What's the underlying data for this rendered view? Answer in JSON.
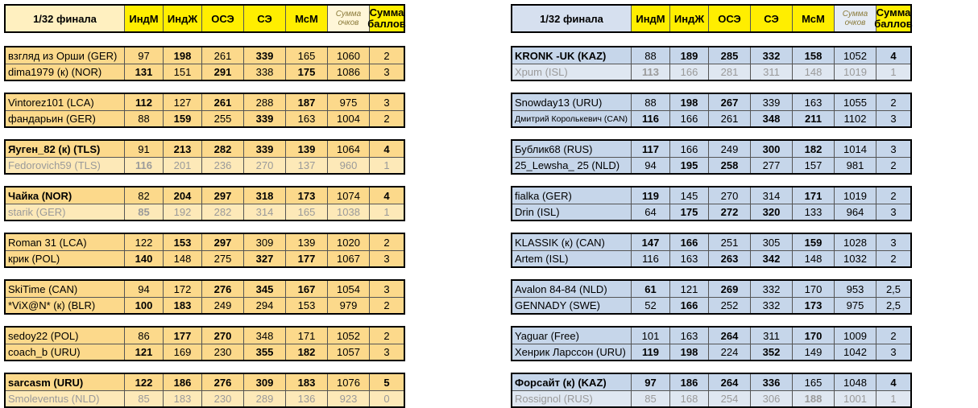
{
  "headers": {
    "round": "1/32 финала",
    "indm": "ИндМ",
    "indzh": "ИндЖ",
    "ose": "ОСЭ",
    "se": "СЭ",
    "msm": "МсМ",
    "sum_points_1": "Сумма",
    "sum_points_2": "очков",
    "sum_score_1": "Сумма",
    "sum_score_2": "баллов"
  },
  "colors": {
    "left_row": "#fcd98b",
    "right_row": "#c6d6ea",
    "header_yellow": "#ffee00",
    "lost_text": "#9a9a9a"
  },
  "left": [
    [
      {
        "name": "взгляд из Орши (GER)",
        "v": [
          "97",
          "198",
          "261",
          "339",
          "165",
          "1060",
          "2"
        ],
        "b": [
          0,
          1,
          0,
          1,
          0,
          0,
          0
        ],
        "nb": 0,
        "lost": 0
      },
      {
        "name": "dima1979 (к) (NOR)",
        "v": [
          "131",
          "151",
          "291",
          "338",
          "175",
          "1086",
          "3"
        ],
        "b": [
          1,
          0,
          1,
          0,
          1,
          0,
          0
        ],
        "nb": 0,
        "lost": 0
      }
    ],
    [
      {
        "name": "Vintorez101 (LCA)",
        "v": [
          "112",
          "127",
          "261",
          "288",
          "187",
          "975",
          "3"
        ],
        "b": [
          1,
          0,
          1,
          0,
          1,
          0,
          0
        ],
        "nb": 0,
        "lost": 0
      },
      {
        "name": "фандарьин (GER)",
        "v": [
          "88",
          "159",
          "255",
          "339",
          "163",
          "1004",
          "2"
        ],
        "b": [
          0,
          1,
          0,
          1,
          0,
          0,
          0
        ],
        "nb": 0,
        "lost": 0
      }
    ],
    [
      {
        "name": "Яуген_82 (к) (TLS)",
        "v": [
          "91",
          "213",
          "282",
          "339",
          "139",
          "1064",
          "4"
        ],
        "b": [
          0,
          1,
          1,
          1,
          1,
          0,
          1
        ],
        "nb": 1,
        "lost": 0
      },
      {
        "name": "Fedorovich59 (TLS)",
        "v": [
          "116",
          "201",
          "236",
          "270",
          "137",
          "960",
          "1"
        ],
        "b": [
          1,
          0,
          0,
          0,
          0,
          0,
          0
        ],
        "nb": 0,
        "lost": 1
      }
    ],
    [
      {
        "name": "Чайка (NOR)",
        "v": [
          "82",
          "204",
          "297",
          "318",
          "173",
          "1074",
          "4"
        ],
        "b": [
          0,
          1,
          1,
          1,
          1,
          0,
          1
        ],
        "nb": 1,
        "lost": 0
      },
      {
        "name": "starik (GER)",
        "v": [
          "85",
          "192",
          "282",
          "314",
          "165",
          "1038",
          "1"
        ],
        "b": [
          1,
          0,
          0,
          0,
          0,
          0,
          0
        ],
        "nb": 0,
        "lost": 1
      }
    ],
    [
      {
        "name": "Roman 31 (LCA)",
        "v": [
          "122",
          "153",
          "297",
          "309",
          "139",
          "1020",
          "2"
        ],
        "b": [
          0,
          1,
          1,
          0,
          0,
          0,
          0
        ],
        "nb": 0,
        "lost": 0
      },
      {
        "name": "крик (POL)",
        "v": [
          "140",
          "148",
          "275",
          "327",
          "177",
          "1067",
          "3"
        ],
        "b": [
          1,
          0,
          0,
          1,
          1,
          0,
          0
        ],
        "nb": 0,
        "lost": 0
      }
    ],
    [
      {
        "name": "SkiTime (CAN)",
        "v": [
          "94",
          "172",
          "276",
          "345",
          "167",
          "1054",
          "3"
        ],
        "b": [
          0,
          0,
          1,
          1,
          1,
          0,
          0
        ],
        "nb": 0,
        "lost": 0
      },
      {
        "name": "*ViX@N* (к) (BLR)",
        "v": [
          "100",
          "183",
          "249",
          "294",
          "153",
          "979",
          "2"
        ],
        "b": [
          1,
          1,
          0,
          0,
          0,
          0,
          0
        ],
        "nb": 0,
        "lost": 0
      }
    ],
    [
      {
        "name": "sedoy22 (POL)",
        "v": [
          "86",
          "177",
          "270",
          "348",
          "171",
          "1052",
          "2"
        ],
        "b": [
          0,
          1,
          1,
          0,
          0,
          0,
          0
        ],
        "nb": 0,
        "lost": 0
      },
      {
        "name": "coach_b (URU)",
        "v": [
          "121",
          "169",
          "230",
          "355",
          "182",
          "1057",
          "3"
        ],
        "b": [
          1,
          0,
          0,
          1,
          1,
          0,
          0
        ],
        "nb": 0,
        "lost": 0
      }
    ],
    [
      {
        "name": "sarcasm (URU)",
        "v": [
          "122",
          "186",
          "276",
          "309",
          "183",
          "1076",
          "5"
        ],
        "b": [
          1,
          1,
          1,
          1,
          1,
          0,
          1
        ],
        "nb": 1,
        "lost": 0
      },
      {
        "name": "Smoleventus (NLD)",
        "v": [
          "85",
          "183",
          "230",
          "289",
          "136",
          "923",
          "0"
        ],
        "b": [
          0,
          0,
          0,
          0,
          0,
          0,
          0
        ],
        "nb": 0,
        "lost": 1
      }
    ]
  ],
  "right": [
    [
      {
        "name": "KRONK -UK (KAZ)",
        "v": [
          "88",
          "189",
          "285",
          "332",
          "158",
          "1052",
          "4"
        ],
        "b": [
          0,
          1,
          1,
          1,
          1,
          0,
          1
        ],
        "nb": 1,
        "lost": 0
      },
      {
        "name": "Xpum (ISL)",
        "v": [
          "113",
          "166",
          "281",
          "311",
          "148",
          "1019",
          "1"
        ],
        "b": [
          1,
          0,
          0,
          0,
          0,
          0,
          0
        ],
        "nb": 0,
        "lost": 1
      }
    ],
    [
      {
        "name": "Snowday13 (URU)",
        "v": [
          "88",
          "198",
          "267",
          "339",
          "163",
          "1055",
          "2"
        ],
        "b": [
          0,
          1,
          1,
          0,
          0,
          0,
          0
        ],
        "nb": 0,
        "lost": 0
      },
      {
        "name": "Дмитрий Королькевич (CAN)",
        "v": [
          "116",
          "166",
          "261",
          "348",
          "211",
          "1102",
          "3"
        ],
        "b": [
          1,
          0,
          0,
          1,
          1,
          0,
          0
        ],
        "nb": 0,
        "lost": 0,
        "small": 1
      }
    ],
    [
      {
        "name": "Бублик68 (RUS)",
        "v": [
          "117",
          "166",
          "249",
          "300",
          "182",
          "1014",
          "3"
        ],
        "b": [
          1,
          0,
          0,
          1,
          1,
          0,
          0
        ],
        "nb": 0,
        "lost": 0
      },
      {
        "name": "25_Lewsha_ 25 (NLD)",
        "v": [
          "94",
          "195",
          "258",
          "277",
          "157",
          "981",
          "2"
        ],
        "b": [
          0,
          1,
          1,
          0,
          0,
          0,
          0
        ],
        "nb": 0,
        "lost": 0
      }
    ],
    [
      {
        "name": "fialka (GER)",
        "v": [
          "119",
          "145",
          "270",
          "314",
          "171",
          "1019",
          "2"
        ],
        "b": [
          1,
          0,
          0,
          0,
          1,
          0,
          0
        ],
        "nb": 0,
        "lost": 0
      },
      {
        "name": "Drin (ISL)",
        "v": [
          "64",
          "175",
          "272",
          "320",
          "133",
          "964",
          "3"
        ],
        "b": [
          0,
          1,
          1,
          1,
          0,
          0,
          0
        ],
        "nb": 0,
        "lost": 0
      }
    ],
    [
      {
        "name": "KLASSIK (к) (CAN)",
        "v": [
          "147",
          "166",
          "251",
          "305",
          "159",
          "1028",
          "3"
        ],
        "b": [
          1,
          1,
          0,
          0,
          1,
          0,
          0
        ],
        "nb": 0,
        "lost": 0
      },
      {
        "name": "Artem (ISL)",
        "v": [
          "116",
          "163",
          "263",
          "342",
          "148",
          "1032",
          "2"
        ],
        "b": [
          0,
          0,
          1,
          1,
          0,
          0,
          0
        ],
        "nb": 0,
        "lost": 0
      }
    ],
    [
      {
        "name": "Avalon 84-84 (NLD)",
        "v": [
          "61",
          "121",
          "269",
          "332",
          "170",
          "953",
          "2,5"
        ],
        "b": [
          1,
          0,
          1,
          0,
          0,
          0,
          0
        ],
        "nb": 0,
        "lost": 0
      },
      {
        "name": "GENNADY (SWE)",
        "v": [
          "52",
          "166",
          "252",
          "332",
          "173",
          "975",
          "2,5"
        ],
        "b": [
          0,
          1,
          0,
          0,
          1,
          0,
          0
        ],
        "nb": 0,
        "lost": 0
      }
    ],
    [
      {
        "name": "Yaguar (Free)",
        "v": [
          "101",
          "163",
          "264",
          "311",
          "170",
          "1009",
          "2"
        ],
        "b": [
          0,
          0,
          1,
          0,
          1,
          0,
          0
        ],
        "nb": 0,
        "lost": 0
      },
      {
        "name": "Хенрик Ларссон (URU)",
        "v": [
          "119",
          "198",
          "224",
          "352",
          "149",
          "1042",
          "3"
        ],
        "b": [
          1,
          1,
          0,
          1,
          0,
          0,
          0
        ],
        "nb": 0,
        "lost": 0
      }
    ],
    [
      {
        "name": "Форсайт (к) (KAZ)",
        "v": [
          "97",
          "186",
          "264",
          "336",
          "165",
          "1048",
          "4"
        ],
        "b": [
          1,
          1,
          1,
          1,
          0,
          0,
          1
        ],
        "nb": 1,
        "lost": 0
      },
      {
        "name": "Rossignol (RUS)",
        "v": [
          "85",
          "168",
          "254",
          "306",
          "188",
          "1001",
          "1"
        ],
        "b": [
          0,
          0,
          0,
          0,
          1,
          0,
          0
        ],
        "nb": 0,
        "lost": 1
      }
    ]
  ]
}
